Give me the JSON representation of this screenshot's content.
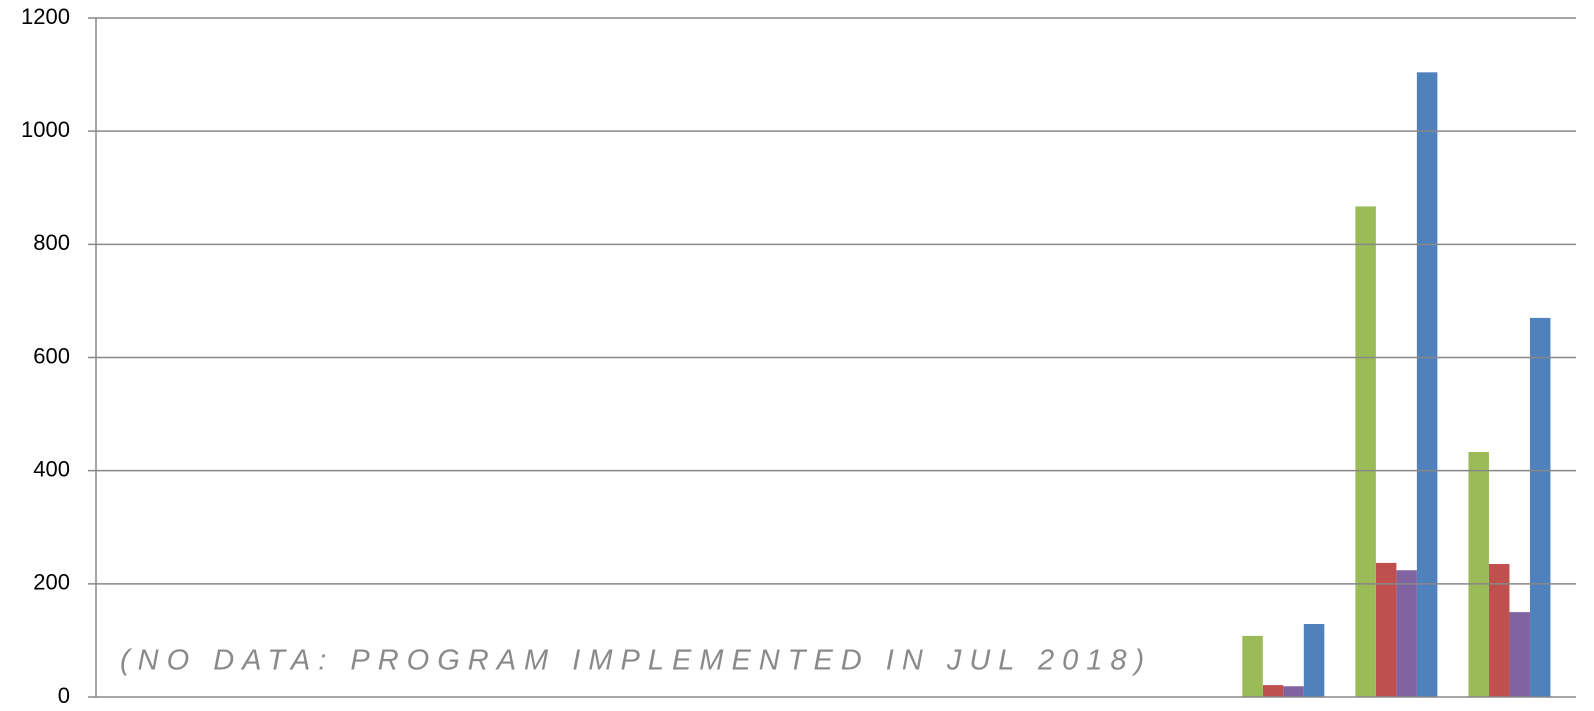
{
  "chart_data": {
    "type": "bar",
    "annotation": "(NO DATA: PROGRAM IMPLEMENTED IN JUL 2018)",
    "categories": [
      null,
      null,
      null,
      null,
      null,
      null,
      null,
      null,
      null,
      null,
      null,
      null,
      null
    ],
    "series": [
      {
        "color": "#9bbb59",
        "values": [
          null,
          null,
          null,
          null,
          null,
          null,
          null,
          null,
          null,
          null,
          108,
          867,
          433
        ]
      },
      {
        "color": "#c0504d",
        "values": [
          null,
          null,
          null,
          null,
          null,
          null,
          null,
          null,
          null,
          null,
          21,
          237,
          235
        ]
      },
      {
        "color": "#8064a2",
        "values": [
          null,
          null,
          null,
          null,
          null,
          null,
          null,
          null,
          null,
          null,
          19,
          224,
          150
        ]
      },
      {
        "color": "#4f81bd",
        "values": [
          null,
          null,
          null,
          null,
          null,
          null,
          null,
          null,
          null,
          null,
          129,
          1104,
          670
        ]
      }
    ],
    "ylim": [
      0,
      1200
    ],
    "yticks": [
      0,
      200,
      400,
      600,
      800,
      1000,
      1200
    ],
    "grid": true
  }
}
